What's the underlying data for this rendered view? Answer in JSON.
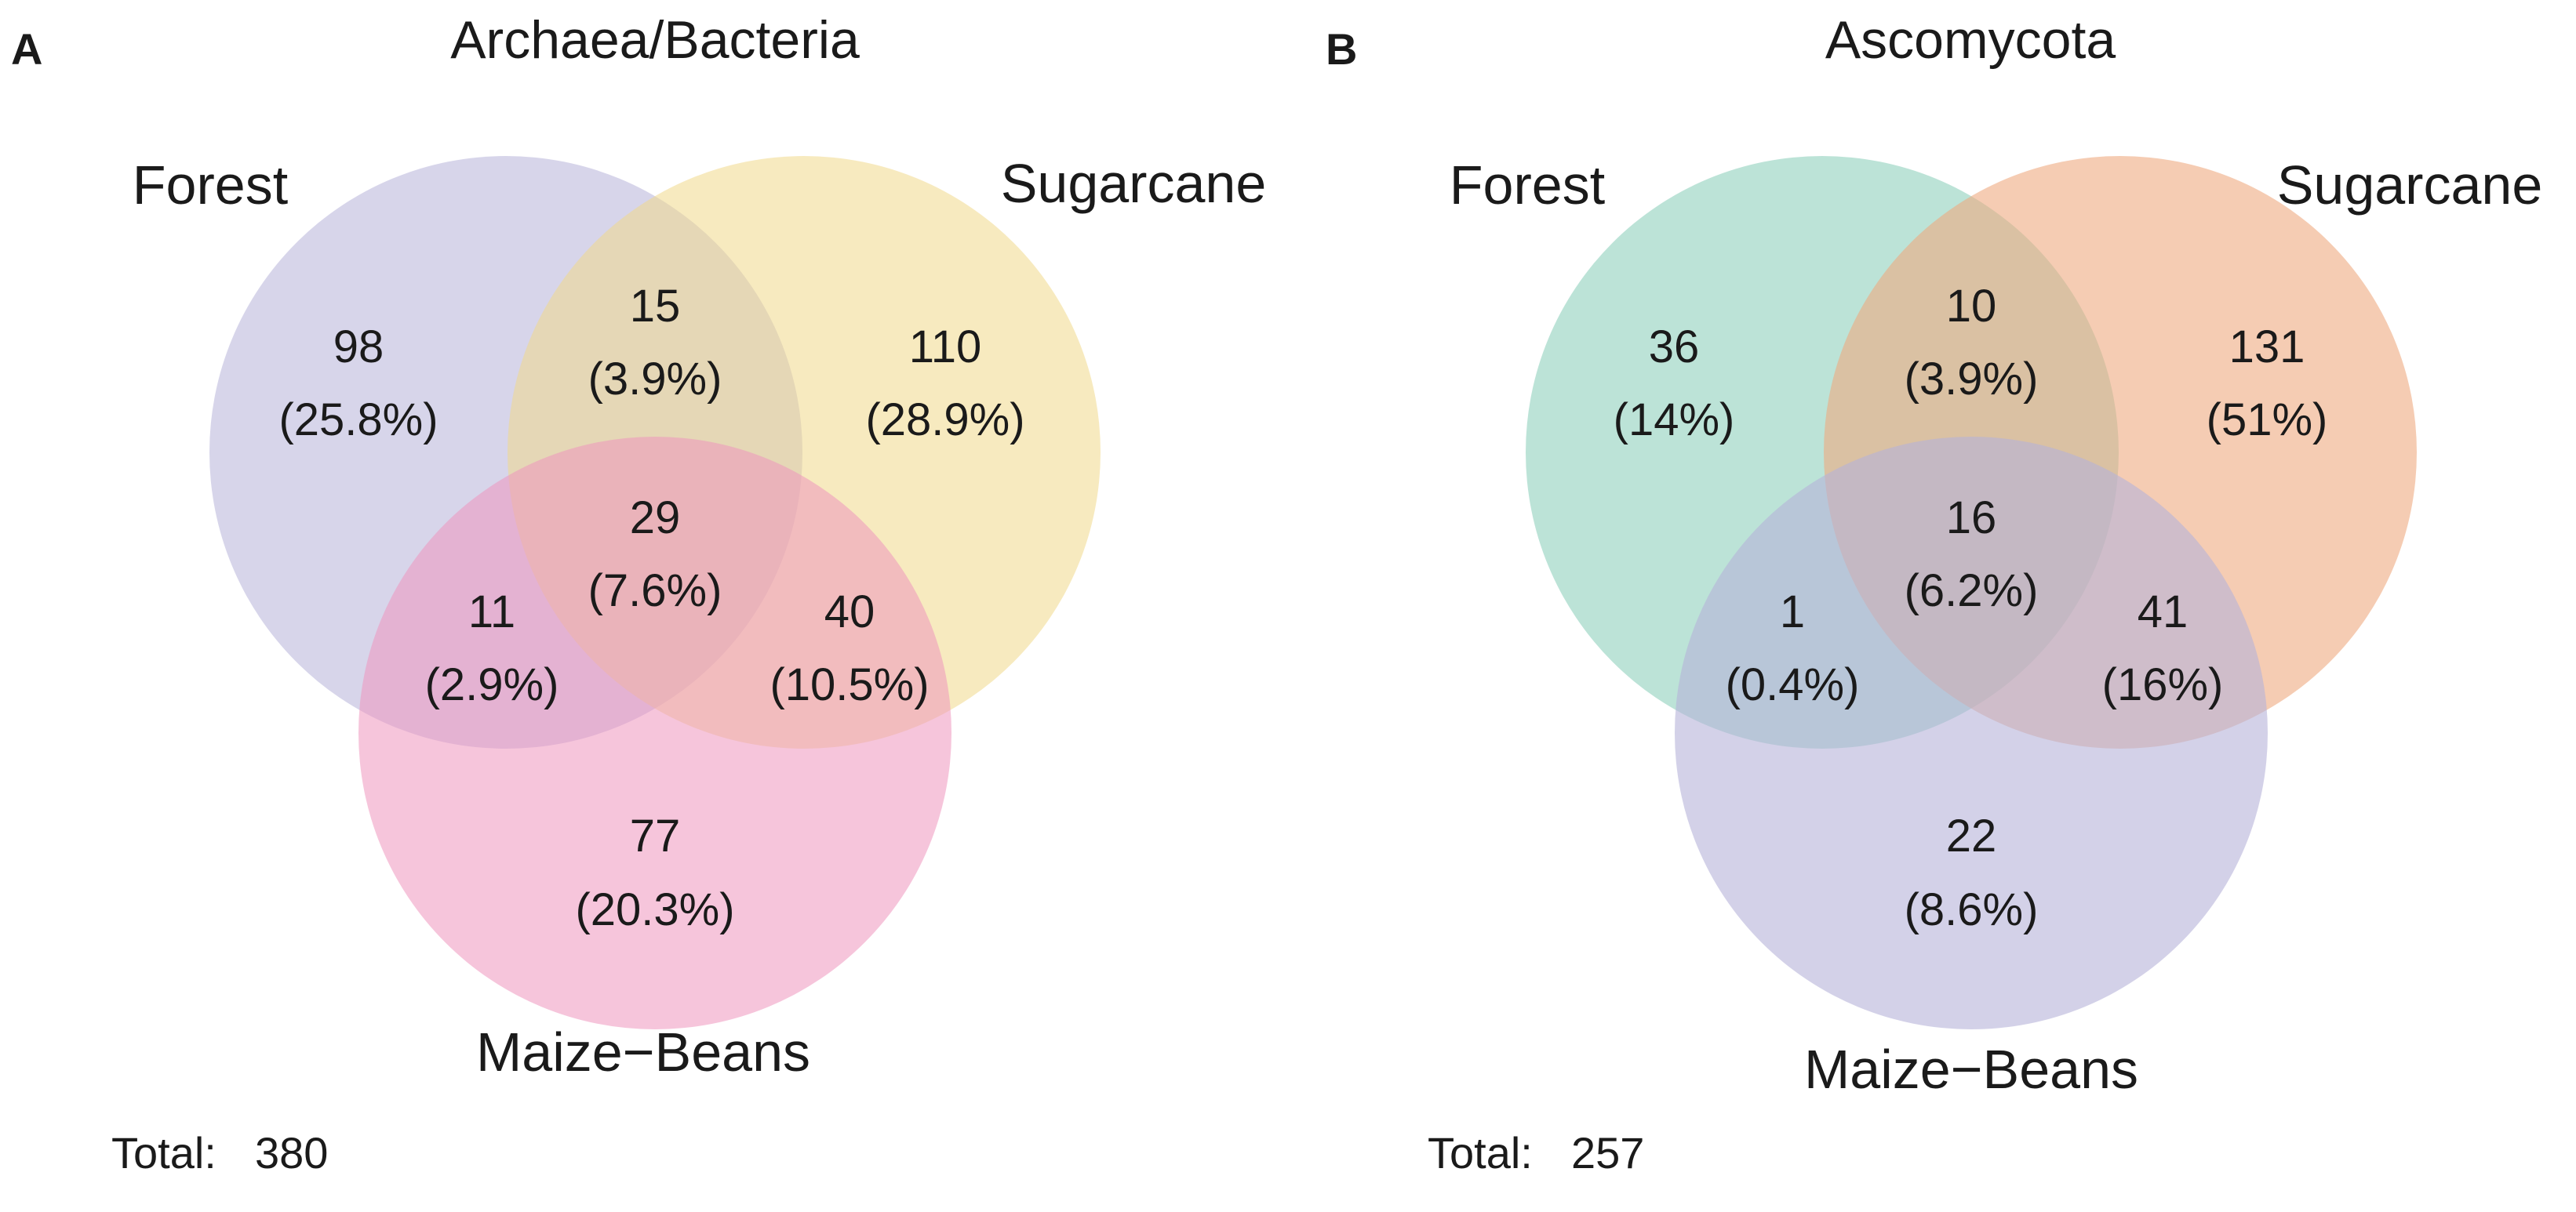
{
  "panels": [
    {
      "letter": "A",
      "title": "Archaea/Bacteria",
      "sets": [
        {
          "label": "Forest",
          "color": "#b6b2d9"
        },
        {
          "label": "Sugarcane",
          "color": "#f1d98a"
        },
        {
          "label": "Maize−Beans",
          "color": "#ef95bd"
        }
      ],
      "regions": {
        "forest_only": {
          "count": "98",
          "pct": "(25.8%)"
        },
        "forest_sugar": {
          "count": "15",
          "pct": "(3.9%)"
        },
        "sugar_only": {
          "count": "110",
          "pct": "(28.9%)"
        },
        "all": {
          "count": "29",
          "pct": "(7.6%)"
        },
        "forest_maize": {
          "count": "11",
          "pct": "(2.9%)"
        },
        "sugar_maize": {
          "count": "40",
          "pct": "(10.5%)"
        },
        "maize_only": {
          "count": "77",
          "pct": "(20.3%)"
        }
      },
      "total_label": "Total:",
      "total_value": "380"
    },
    {
      "letter": "B",
      "title": "Ascomycota",
      "sets": [
        {
          "label": "Forest",
          "color": "#8fd1bd"
        },
        {
          "label": "Sugarcane",
          "color": "#eeaa80"
        },
        {
          "label": "Maize−Beans",
          "color": "#b6b2d9"
        }
      ],
      "regions": {
        "forest_only": {
          "count": "36",
          "pct": "(14%)"
        },
        "forest_sugar": {
          "count": "10",
          "pct": "(3.9%)"
        },
        "sugar_only": {
          "count": "131",
          "pct": "(51%)"
        },
        "all": {
          "count": "16",
          "pct": "(6.2%)"
        },
        "forest_maize": {
          "count": "1",
          "pct": "(0.4%)"
        },
        "sugar_maize": {
          "count": "41",
          "pct": "(16%)"
        },
        "maize_only": {
          "count": "22",
          "pct": "(8.6%)"
        }
      },
      "total_label": "Total:",
      "total_value": "257"
    }
  ]
}
